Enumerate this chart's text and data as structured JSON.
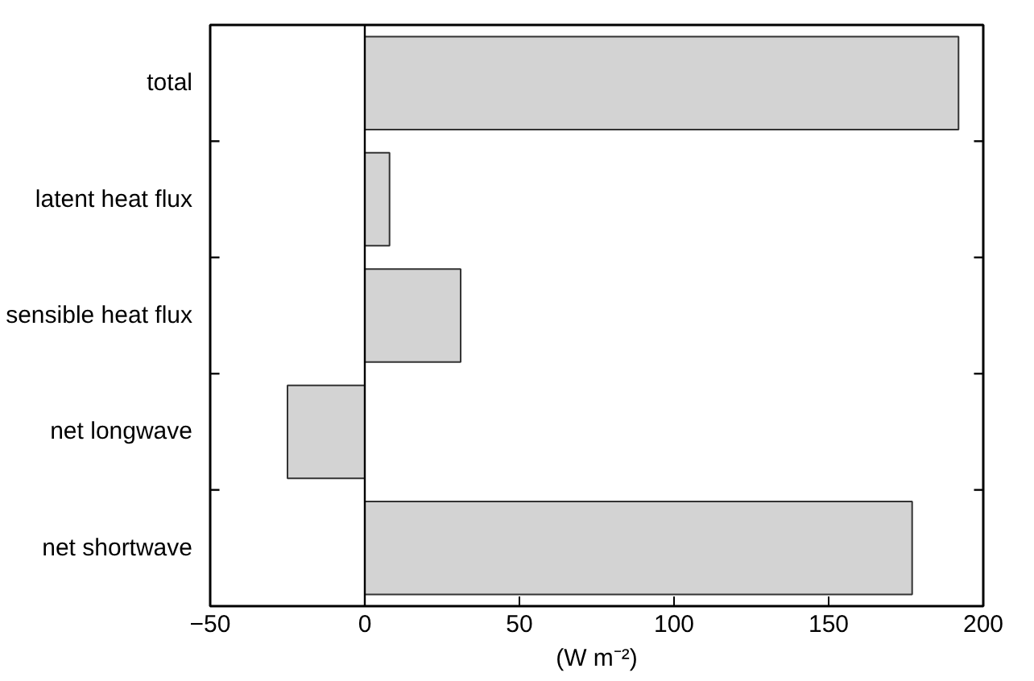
{
  "chart_data": {
    "type": "bar",
    "orientation": "horizontal",
    "categories": [
      "total",
      "latent heat flux",
      "sensible heat flux",
      "net longwave",
      "net shortwave"
    ],
    "values": [
      192,
      8,
      31,
      -25,
      177
    ],
    "color": "#d3d3d3",
    "xlabel": "(W m⁻²)",
    "xlim": [
      -50,
      200
    ],
    "xticks": [
      -50,
      0,
      50,
      100,
      150,
      200
    ],
    "ref_lines": [
      {
        "axis": "x",
        "value": 0,
        "color": "#000000"
      }
    ],
    "grid": false
  }
}
